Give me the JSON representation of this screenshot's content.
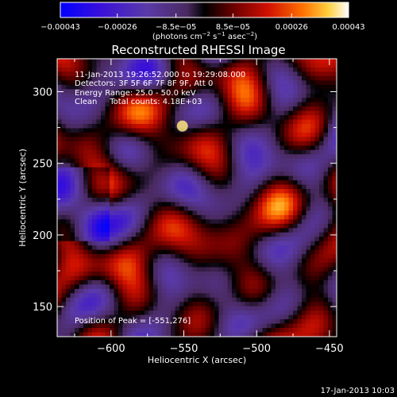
{
  "chart_data": {
    "type": "heatmap",
    "title": "Reconstructed RHESSI Image",
    "xlabel": "Heliocentric X (arcsec)",
    "ylabel": "Heliocentric Y (arcsec)",
    "xlim": [
      -637,
      -445
    ],
    "ylim": [
      129,
      323
    ],
    "x_ticks": [
      -600,
      -550,
      -500,
      -450
    ],
    "x_tick_labels": [
      "−600",
      "−550",
      "−500",
      "−450"
    ],
    "y_ticks": [
      150,
      200,
      250,
      300
    ],
    "y_tick_labels": [
      "150",
      "200",
      "250",
      "300"
    ],
    "colorbar": {
      "range": [
        -0.00043,
        0.00043
      ],
      "ticks": [
        -0.00043,
        -0.00026,
        -8.5e-05,
        8.5e-05,
        0.00026,
        0.00043
      ],
      "tick_labels": [
        "−0.00043",
        "−0.00026",
        "−8.5e−05",
        "8.5e−05",
        "0.00026",
        "0.00043"
      ],
      "units_text": "(photons cm",
      "units_exp1": "−2",
      "units_mid": " s",
      "units_exp2": "−1",
      "units_mid2": " asec",
      "units_exp3": "−2",
      "units_end": ")"
    },
    "annotations": [
      "11-Jan-2013 19:26:52.000 to 19:29:08.000",
      "Detectors: 3F 5F 6F 7F 8F 9F, Att 0",
      "Energy Range: 25.0 - 50.0 keV",
      "Clean     Total counts: 4.18E+03"
    ],
    "peak_label": "Position of Peak = [-551,276]",
    "peak": [
      -551,
      276
    ],
    "grid": false
  },
  "footer": {
    "timestamp": "17-Jan-2013 10:03"
  }
}
